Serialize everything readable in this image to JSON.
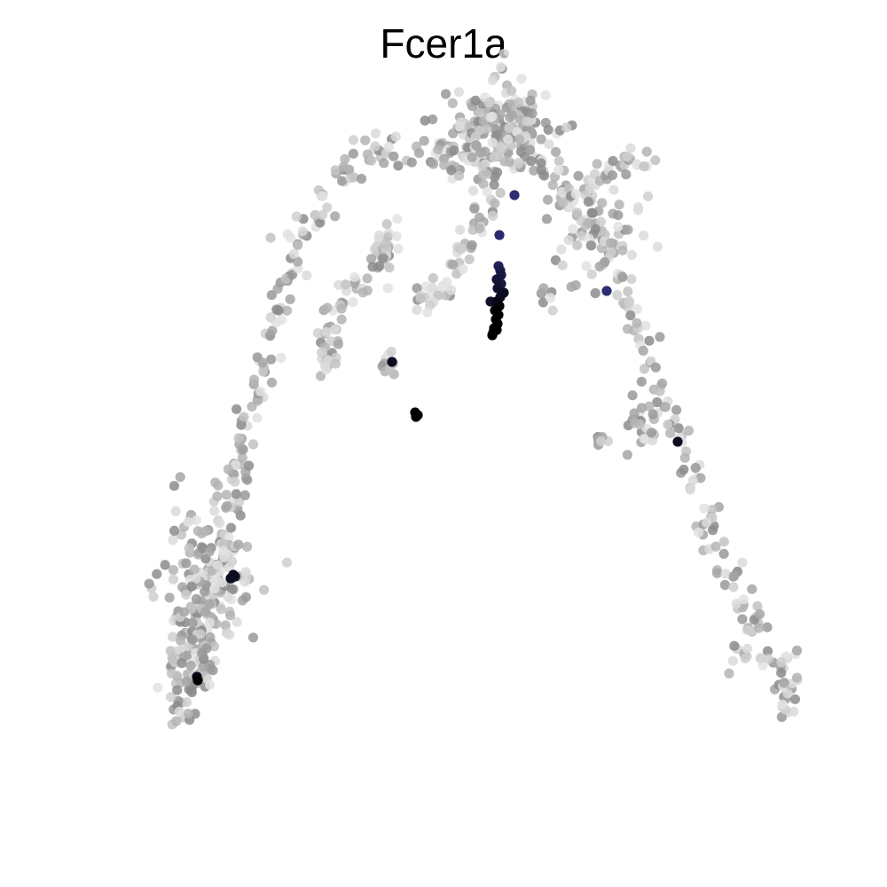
{
  "chart_data": {
    "type": "scatter",
    "title": "Fcer1a",
    "xlabel": "",
    "ylabel": "",
    "axes_visible": false,
    "grid": false,
    "legend": false,
    "xlim": [
      0,
      100
    ],
    "ylim": [
      0,
      100
    ],
    "color_scale": {
      "low": "#e6e6e6",
      "mid": "#8c8c8c",
      "expr_low": "#2a2a6e",
      "expr_high": "#000000"
    },
    "background_cells": {
      "note_points_jitter": 0,
      "branches": [
        {
          "name_hidden": true,
          "points": [
            [
              20.4,
              18.2
            ],
            [
              21.0,
              21.0
            ],
            [
              21.8,
              24.0
            ],
            [
              22.6,
              27.5
            ],
            [
              23.3,
              30.5
            ],
            [
              24.0,
              33.5
            ],
            [
              24.8,
              37.0
            ],
            [
              25.6,
              40.0
            ],
            [
              26.2,
              43.5
            ],
            [
              26.9,
              46.5
            ],
            [
              27.6,
              49.5
            ],
            [
              28.4,
              53.0
            ],
            [
              29.2,
              56.5
            ],
            [
              30.2,
              60.0
            ],
            [
              31.2,
              64.0
            ],
            [
              32.0,
              68.0
            ],
            [
              33.0,
              71.5
            ],
            [
              34.5,
              74.5
            ],
            [
              36.5,
              77.5
            ],
            [
              38.5,
              80.5
            ],
            [
              41.0,
              82.5
            ],
            [
              43.5,
              83.5
            ],
            [
              46.5,
              83.0
            ],
            [
              49.5,
              82.5
            ],
            [
              52.0,
              84.0
            ],
            [
              54.5,
              86.0
            ],
            [
              56.0,
              87.0
            ]
          ]
        },
        {
          "name_hidden": true,
          "points": [
            [
              56.0,
              87.0
            ],
            [
              58.0,
              85.5
            ],
            [
              60.5,
              82.5
            ],
            [
              62.5,
              79.5
            ],
            [
              64.5,
              77.0
            ],
            [
              66.5,
              74.5
            ],
            [
              68.0,
              72.0
            ],
            [
              69.5,
              69.0
            ],
            [
              71.0,
              65.0
            ],
            [
              72.5,
              61.0
            ],
            [
              74.0,
              57.0
            ],
            [
              75.5,
              53.0
            ],
            [
              77.0,
              48.5
            ],
            [
              78.5,
              44.5
            ],
            [
              80.0,
              41.0
            ],
            [
              81.5,
              37.5
            ],
            [
              83.0,
              34.0
            ],
            [
              84.5,
              31.0
            ],
            [
              86.0,
              28.0
            ],
            [
              87.5,
              24.5
            ],
            [
              88.5,
              21.5
            ]
          ]
        },
        {
          "name_hidden": true,
          "points": [
            [
              63.5,
              77.5
            ],
            [
              65.5,
              78.5
            ],
            [
              67.5,
              79.5
            ],
            [
              69.5,
              80.5
            ],
            [
              71.5,
              81.5
            ],
            [
              73.5,
              82.5
            ]
          ]
        },
        {
          "name_hidden": true,
          "points": [
            [
              56.0,
              86.0
            ],
            [
              55.5,
              82.5
            ],
            [
              55.0,
              79.0
            ],
            [
              54.5,
              76.0
            ],
            [
              53.5,
              73.5
            ],
            [
              52.0,
              70.5
            ],
            [
              50.5,
              68.0
            ],
            [
              48.5,
              66.5
            ],
            [
              47.0,
              65.0
            ]
          ]
        },
        {
          "name_hidden": true,
          "points": [
            [
              44.0,
              74.0
            ],
            [
              43.5,
              72.0
            ],
            [
              42.0,
              70.0
            ],
            [
              40.0,
              68.0
            ],
            [
              38.5,
              66.0
            ],
            [
              37.5,
              63.0
            ],
            [
              36.5,
              60.0
            ]
          ]
        }
      ],
      "clusters": [
        {
          "center": [
            56.0,
            85.0
          ],
          "count": 160,
          "spread": [
            3.5,
            3.0
          ]
        },
        {
          "center": [
            23.5,
            34.0
          ],
          "count": 150,
          "spread": [
            2.6,
            4.5
          ]
        },
        {
          "center": [
            21.5,
            26.0
          ],
          "count": 60,
          "spread": [
            1.4,
            3.0
          ]
        },
        {
          "center": [
            67.0,
            73.0
          ],
          "count": 50,
          "spread": [
            2.5,
            3.0
          ]
        },
        {
          "center": [
            72.5,
            51.5
          ],
          "count": 25,
          "spread": [
            1.2,
            1.5
          ]
        },
        {
          "center": [
            36.5,
            60.0
          ],
          "count": 14,
          "spread": [
            0.8,
            1.0
          ]
        },
        {
          "center": [
            44.0,
            59.0
          ],
          "count": 10,
          "spread": [
            0.8,
            1.0
          ]
        },
        {
          "center": [
            67.5,
            50.5
          ],
          "count": 6,
          "spread": [
            0.6,
            0.5
          ]
        },
        {
          "center": [
            89.0,
            22.0
          ],
          "count": 18,
          "spread": [
            1.2,
            2.5
          ]
        },
        {
          "center": [
            83.5,
            26.0
          ],
          "count": 8,
          "spread": [
            0.8,
            0.8
          ]
        },
        {
          "center": [
            61.5,
            66.5
          ],
          "count": 6,
          "spread": [
            0.6,
            0.8
          ]
        },
        {
          "center": [
            44.0,
            72.5
          ],
          "count": 8,
          "spread": [
            0.8,
            1.5
          ]
        }
      ]
    },
    "expressing_cells": [
      {
        "x": 58.0,
        "y": 78.0,
        "level": 0.45
      },
      {
        "x": 56.3,
        "y": 73.5,
        "level": 0.5
      },
      {
        "x": 56.2,
        "y": 70.0,
        "level": 0.6
      },
      {
        "x": 56.4,
        "y": 69.5,
        "level": 0.65
      },
      {
        "x": 56.0,
        "y": 68.5,
        "level": 0.75
      },
      {
        "x": 56.5,
        "y": 68.0,
        "level": 0.7
      },
      {
        "x": 56.1,
        "y": 67.5,
        "level": 0.8
      },
      {
        "x": 56.4,
        "y": 66.5,
        "level": 0.85
      },
      {
        "x": 56.0,
        "y": 66.0,
        "level": 0.9
      },
      {
        "x": 56.3,
        "y": 65.5,
        "level": 0.95
      },
      {
        "x": 55.8,
        "y": 65.0,
        "level": 1.0
      },
      {
        "x": 56.2,
        "y": 64.5,
        "level": 1.0
      },
      {
        "x": 55.9,
        "y": 64.0,
        "level": 1.0
      },
      {
        "x": 56.1,
        "y": 63.5,
        "level": 1.0
      },
      {
        "x": 55.7,
        "y": 63.0,
        "level": 1.0
      },
      {
        "x": 56.0,
        "y": 62.8,
        "level": 1.0
      },
      {
        "x": 55.6,
        "y": 62.5,
        "level": 1.0
      },
      {
        "x": 55.5,
        "y": 62.2,
        "level": 1.0
      },
      {
        "x": 56.5,
        "y": 69.0,
        "level": 0.7
      },
      {
        "x": 56.8,
        "y": 67.0,
        "level": 0.85
      },
      {
        "x": 55.3,
        "y": 66.0,
        "level": 0.8
      },
      {
        "x": 44.2,
        "y": 59.2,
        "level": 0.85
      },
      {
        "x": 46.8,
        "y": 53.5,
        "level": 1.0
      },
      {
        "x": 47.1,
        "y": 53.2,
        "level": 1.0
      },
      {
        "x": 46.9,
        "y": 53.0,
        "level": 1.0
      },
      {
        "x": 76.4,
        "y": 50.2,
        "level": 0.85
      },
      {
        "x": 68.4,
        "y": 67.2,
        "level": 0.45
      },
      {
        "x": 26.3,
        "y": 35.2,
        "level": 0.85
      },
      {
        "x": 26.0,
        "y": 34.8,
        "level": 0.85
      },
      {
        "x": 26.5,
        "y": 35.0,
        "level": 0.85
      },
      {
        "x": 22.2,
        "y": 23.7,
        "level": 0.9
      },
      {
        "x": 22.3,
        "y": 23.3,
        "level": 1.0
      }
    ]
  }
}
